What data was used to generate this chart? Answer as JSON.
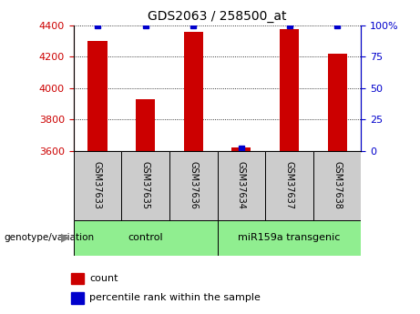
{
  "title": "GDS2063 / 258500_at",
  "samples": [
    "GSM37633",
    "GSM37635",
    "GSM37636",
    "GSM37634",
    "GSM37637",
    "GSM37638"
  ],
  "count_values": [
    4300,
    3930,
    4360,
    3618,
    4375,
    4220
  ],
  "percentile_values": [
    100,
    100,
    100,
    2,
    100,
    100
  ],
  "ylim_left": [
    3600,
    4400
  ],
  "ylim_right": [
    0,
    100
  ],
  "yticks_left": [
    3600,
    3800,
    4000,
    4200,
    4400
  ],
  "yticks_right": [
    0,
    25,
    50,
    75,
    100
  ],
  "bar_color": "#cc0000",
  "percentile_color": "#0000cc",
  "bar_width": 0.4,
  "groups": [
    {
      "label": "control",
      "indices": [
        0,
        1,
        2
      ],
      "color": "#90ee90"
    },
    {
      "label": "miR159a transgenic",
      "indices": [
        3,
        4,
        5
      ],
      "color": "#90ee90"
    }
  ],
  "group_label_prefix": "genotype/variation",
  "legend_count_label": "count",
  "legend_percentile_label": "percentile rank within the sample",
  "tick_color_left": "#cc0000",
  "tick_color_right": "#0000cc",
  "background_color": "#ffffff"
}
